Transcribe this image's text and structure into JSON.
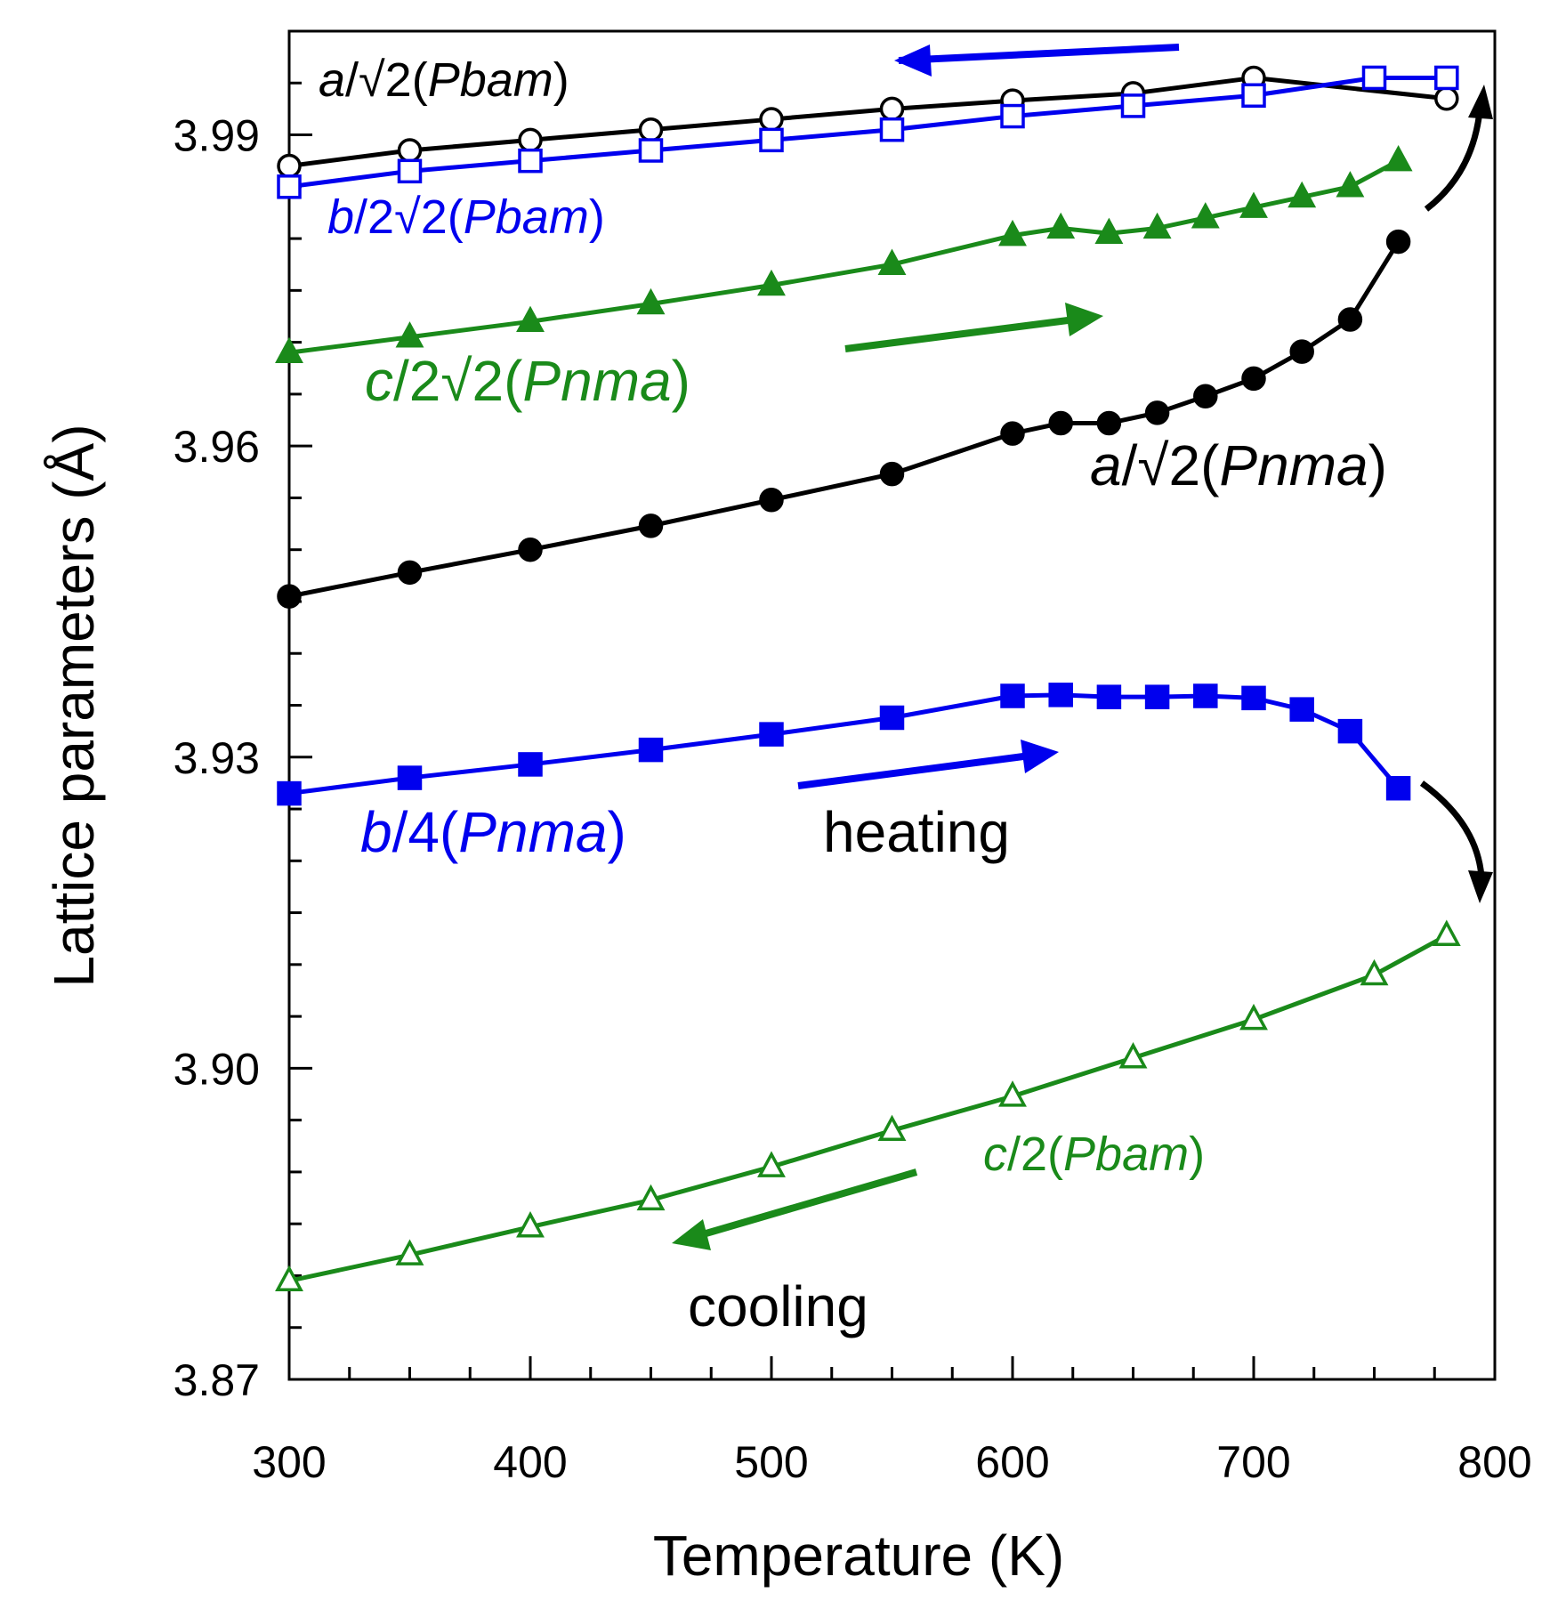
{
  "chart_data": {
    "type": "line",
    "xlabel": "Temperature (K)",
    "ylabel": "Lattice parameters (Å)",
    "xlim": [
      300,
      800
    ],
    "ylim": [
      3.87,
      4.0
    ],
    "xticks": [
      "300",
      "400",
      "500",
      "600",
      "700",
      "800"
    ],
    "yticks": [
      "3.87",
      "3.90",
      "3.93",
      "3.96",
      "3.99"
    ],
    "grid": false,
    "series": [
      {
        "name": "a/√2(Pbam)",
        "color": "#000000",
        "marker": "circle-open",
        "x": [
          300,
          350,
          400,
          450,
          500,
          550,
          600,
          650,
          700,
          780
        ],
        "y": [
          3.987,
          3.9885,
          3.9895,
          3.9905,
          3.9915,
          3.9925,
          3.9933,
          3.994,
          3.9955,
          3.9935
        ]
      },
      {
        "name": "b/2√2(Pbam)",
        "color": "#0000ee",
        "marker": "square-open",
        "x": [
          300,
          350,
          400,
          450,
          500,
          550,
          600,
          650,
          700,
          750,
          780
        ],
        "y": [
          3.985,
          3.9865,
          3.9875,
          3.9885,
          3.9895,
          3.9905,
          3.9918,
          3.9928,
          3.9938,
          3.9955,
          3.9955
        ]
      },
      {
        "name": "c/2√2(Pnma)",
        "color": "#1a8a1a",
        "marker": "triangle-filled",
        "x": [
          300,
          350,
          400,
          450,
          500,
          550,
          600,
          620,
          640,
          660,
          680,
          700,
          720,
          740,
          760
        ],
        "y": [
          3.969,
          3.9705,
          3.972,
          3.9737,
          3.9755,
          3.9775,
          3.9803,
          3.981,
          3.9805,
          3.981,
          3.982,
          3.983,
          3.984,
          3.985,
          3.9875
        ]
      },
      {
        "name": "a/√2(Pnma)",
        "color": "#000000",
        "marker": "circle-filled",
        "x": [
          300,
          350,
          400,
          450,
          500,
          550,
          600,
          620,
          640,
          660,
          680,
          700,
          720,
          740,
          760
        ],
        "y": [
          3.9455,
          3.9478,
          3.95,
          3.9523,
          3.9548,
          3.9573,
          3.9612,
          3.9622,
          3.9622,
          3.9632,
          3.9648,
          3.9665,
          3.9691,
          3.9722,
          3.9797
        ]
      },
      {
        "name": "b/4(Pnma)",
        "color": "#0000ee",
        "marker": "square-filled",
        "x": [
          300,
          350,
          400,
          450,
          500,
          550,
          600,
          620,
          640,
          660,
          680,
          700,
          720,
          740,
          760
        ],
        "y": [
          3.9265,
          3.928,
          3.9293,
          3.9307,
          3.9322,
          3.9338,
          3.9359,
          3.936,
          3.9358,
          3.9358,
          3.9359,
          3.9357,
          3.9346,
          3.9325,
          3.927
        ]
      },
      {
        "name": "c/2(Pbam)",
        "color": "#1a8a1a",
        "marker": "triangle-open",
        "x": [
          300,
          350,
          400,
          450,
          500,
          550,
          600,
          650,
          700,
          750,
          780
        ],
        "y": [
          3.8795,
          3.882,
          3.8847,
          3.8873,
          3.8905,
          3.894,
          3.8973,
          3.901,
          3.9047,
          3.909,
          3.9128
        ]
      }
    ],
    "annotations": {
      "a_pbam": {
        "pre": "a",
        "post": "/√2(",
        "ital": "Pbam",
        "close": ")",
        "color": "#000000"
      },
      "b_pbam": {
        "pre": "b",
        "post": "/2√2(",
        "ital": "Pbam",
        "close": ")",
        "color": "#0000ee"
      },
      "c_pnma": {
        "pre": "c",
        "post": "/2√2(",
        "ital": "Pnma",
        "close": ")",
        "color": "#1a8a1a"
      },
      "a_pnma": {
        "pre": "a",
        "post": "/√2(",
        "ital": "Pnma",
        "close": ")",
        "color": "#000000"
      },
      "b_pnma": {
        "pre": "b",
        "post": "/4(",
        "ital": "Pnma",
        "close": ")",
        "color": "#0000ee"
      },
      "c_pbam": {
        "pre": "c",
        "post": "/2(",
        "ital": "Pbam",
        "close": ")",
        "color": "#1a8a1a"
      },
      "heating": "heating",
      "cooling": "cooling"
    }
  }
}
